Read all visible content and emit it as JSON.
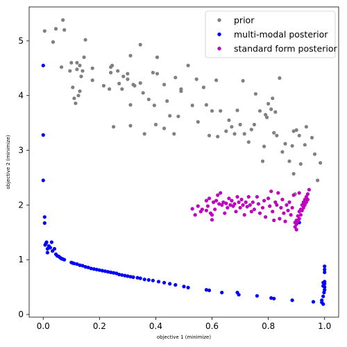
{
  "chart_data": {
    "type": "scatter",
    "title": "",
    "xlabel": "objective 1 (minimize)",
    "ylabel": "objective 2 (minimize)",
    "xlim": [
      -0.05,
      1.05
    ],
    "ylim": [
      -0.05,
      5.62
    ],
    "xticks": [
      0.0,
      0.2,
      0.4,
      0.6,
      0.8,
      1.0
    ],
    "yticks": [
      0,
      1,
      2,
      3,
      4,
      5
    ],
    "xtick_labels": [
      "0.0",
      "0.2",
      "0.4",
      "0.6",
      "0.8",
      "1.0"
    ],
    "ytick_labels": [
      "0",
      "1",
      "2",
      "3",
      "4",
      "5"
    ],
    "grid": false,
    "legend_position": "top-right",
    "series": [
      {
        "name": "prior",
        "color": "#808080",
        "points": [
          [
            0.005,
            5.18
          ],
          [
            0.035,
            4.98
          ],
          [
            0.045,
            5.22
          ],
          [
            0.07,
            5.38
          ],
          [
            0.075,
            5.2
          ],
          [
            0.065,
            4.52
          ],
          [
            0.095,
            4.45
          ],
          [
            0.1,
            4.6
          ],
          [
            0.105,
            4.15
          ],
          [
            0.11,
            3.95
          ],
          [
            0.115,
            3.86
          ],
          [
            0.12,
            4.48
          ],
          [
            0.12,
            4.6
          ],
          [
            0.13,
            4.55
          ],
          [
            0.125,
            4.0
          ],
          [
            0.13,
            4.08
          ],
          [
            0.135,
            4.35
          ],
          [
            0.14,
            4.45
          ],
          [
            0.145,
            4.7
          ],
          [
            0.15,
            5.02
          ],
          [
            0.175,
            4.5
          ],
          [
            0.175,
            4.28
          ],
          [
            0.215,
            4.18
          ],
          [
            0.235,
            4.12
          ],
          [
            0.24,
            4.52
          ],
          [
            0.24,
            4.42
          ],
          [
            0.245,
            4.55
          ],
          [
            0.25,
            3.43
          ],
          [
            0.265,
            4.45
          ],
          [
            0.27,
            4.22
          ],
          [
            0.28,
            4.12
          ],
          [
            0.285,
            4.35
          ],
          [
            0.3,
            4.3
          ],
          [
            0.3,
            4.4
          ],
          [
            0.31,
            4.73
          ],
          [
            0.31,
            3.83
          ],
          [
            0.31,
            3.45
          ],
          [
            0.32,
            4.2
          ],
          [
            0.325,
            4.18
          ],
          [
            0.345,
            4.93
          ],
          [
            0.345,
            4.23
          ],
          [
            0.355,
            4.05
          ],
          [
            0.36,
            3.3
          ],
          [
            0.375,
            3.93
          ],
          [
            0.39,
            4.42
          ],
          [
            0.395,
            3.82
          ],
          [
            0.4,
            3.47
          ],
          [
            0.405,
            4.4
          ],
          [
            0.405,
            4.7
          ],
          [
            0.43,
            4.2
          ],
          [
            0.43,
            3.4
          ],
          [
            0.44,
            3.9
          ],
          [
            0.45,
            3.63
          ],
          [
            0.465,
            3.3
          ],
          [
            0.47,
            4.33
          ],
          [
            0.48,
            3.62
          ],
          [
            0.49,
            4.08
          ],
          [
            0.49,
            4.12
          ],
          [
            0.515,
            4.55
          ],
          [
            0.53,
            3.82
          ],
          [
            0.545,
            4.3
          ],
          [
            0.55,
            3.52
          ],
          [
            0.57,
            4.15
          ],
          [
            0.58,
            3.83
          ],
          [
            0.59,
            3.27
          ],
          [
            0.6,
            3.72
          ],
          [
            0.615,
            4.28
          ],
          [
            0.62,
            3.25
          ],
          [
            0.63,
            3.72
          ],
          [
            0.65,
            3.35
          ],
          [
            0.66,
            3.55
          ],
          [
            0.67,
            3.43
          ],
          [
            0.68,
            3.3
          ],
          [
            0.69,
            3.73
          ],
          [
            0.7,
            3.47
          ],
          [
            0.71,
            4.27
          ],
          [
            0.715,
            3.3
          ],
          [
            0.73,
            3.15
          ],
          [
            0.74,
            3.38
          ],
          [
            0.75,
            3.47
          ],
          [
            0.755,
            4.03
          ],
          [
            0.77,
            3.72
          ],
          [
            0.78,
            2.8
          ],
          [
            0.785,
            3.07
          ],
          [
            0.79,
            3.65
          ],
          [
            0.795,
            3.6
          ],
          [
            0.8,
            3.85
          ],
          [
            0.81,
            3.75
          ],
          [
            0.815,
            3.95
          ],
          [
            0.82,
            3.32
          ],
          [
            0.825,
            3.7
          ],
          [
            0.83,
            3.27
          ],
          [
            0.84,
            4.32
          ],
          [
            0.85,
            2.97
          ],
          [
            0.86,
            3.12
          ],
          [
            0.875,
            2.8
          ],
          [
            0.885,
            3.08
          ],
          [
            0.89,
            2.57
          ],
          [
            0.89,
            3.35
          ],
          [
            0.895,
            2.2
          ],
          [
            0.9,
            3.37
          ],
          [
            0.91,
            3.27
          ],
          [
            0.915,
            2.75
          ],
          [
            0.93,
            3.1
          ],
          [
            0.935,
            3.43
          ],
          [
            0.955,
            3.23
          ],
          [
            0.965,
            2.93
          ],
          [
            0.975,
            2.45
          ],
          [
            0.985,
            2.77
          ]
        ]
      },
      {
        "name": "multi-modal posterior",
        "color": "#0000ff",
        "points": [
          [
            0.0,
            4.55
          ],
          [
            0.0,
            3.28
          ],
          [
            0.0,
            2.45
          ],
          [
            0.005,
            1.78
          ],
          [
            0.005,
            1.67
          ],
          [
            0.007,
            1.27
          ],
          [
            0.01,
            1.3
          ],
          [
            0.012,
            1.32
          ],
          [
            0.015,
            1.2
          ],
          [
            0.015,
            1.13
          ],
          [
            0.02,
            1.25
          ],
          [
            0.025,
            1.22
          ],
          [
            0.03,
            1.32
          ],
          [
            0.033,
            1.16
          ],
          [
            0.04,
            1.2
          ],
          [
            0.045,
            1.1
          ],
          [
            0.05,
            1.07
          ],
          [
            0.055,
            1.06
          ],
          [
            0.06,
            1.04
          ],
          [
            0.065,
            1.02
          ],
          [
            0.07,
            1.01
          ],
          [
            0.075,
            1.0
          ],
          [
            0.1,
            0.95
          ],
          [
            0.105,
            0.94
          ],
          [
            0.11,
            0.93
          ],
          [
            0.12,
            0.92
          ],
          [
            0.13,
            0.9
          ],
          [
            0.14,
            0.89
          ],
          [
            0.15,
            0.87
          ],
          [
            0.16,
            0.86
          ],
          [
            0.17,
            0.84
          ],
          [
            0.18,
            0.83
          ],
          [
            0.19,
            0.82
          ],
          [
            0.2,
            0.81
          ],
          [
            0.21,
            0.8
          ],
          [
            0.22,
            0.79
          ],
          [
            0.23,
            0.78
          ],
          [
            0.24,
            0.77
          ],
          [
            0.25,
            0.76
          ],
          [
            0.26,
            0.75
          ],
          [
            0.27,
            0.73
          ],
          [
            0.28,
            0.72
          ],
          [
            0.29,
            0.71
          ],
          [
            0.3,
            0.7
          ],
          [
            0.31,
            0.69
          ],
          [
            0.32,
            0.68
          ],
          [
            0.335,
            0.67
          ],
          [
            0.345,
            0.66
          ],
          [
            0.36,
            0.64
          ],
          [
            0.375,
            0.63
          ],
          [
            0.39,
            0.62
          ],
          [
            0.41,
            0.6
          ],
          [
            0.43,
            0.58
          ],
          [
            0.45,
            0.56
          ],
          [
            0.47,
            0.54
          ],
          [
            0.5,
            0.51
          ],
          [
            0.515,
            0.49
          ],
          [
            0.58,
            0.45
          ],
          [
            0.59,
            0.44
          ],
          [
            0.635,
            0.4
          ],
          [
            0.69,
            0.4
          ],
          [
            0.695,
            0.36
          ],
          [
            0.76,
            0.34
          ],
          [
            0.81,
            0.3
          ],
          [
            0.82,
            0.29
          ],
          [
            0.885,
            0.26
          ],
          [
            0.91,
            1.68
          ],
          [
            0.96,
            0.23
          ],
          [
            0.99,
            0.26
          ],
          [
            0.99,
            0.22
          ],
          [
            0.995,
            0.33
          ],
          [
            0.995,
            0.19
          ],
          [
            0.995,
            0.52
          ],
          [
            0.995,
            0.58
          ],
          [
            0.998,
            0.4
          ],
          [
            1.0,
            0.88
          ],
          [
            1.0,
            0.82
          ],
          [
            1.0,
            0.77
          ],
          [
            1.0,
            0.56
          ],
          [
            1.0,
            0.5
          ],
          [
            1.0,
            0.45
          ],
          [
            1.0,
            0.6
          ]
        ]
      },
      {
        "name": "standard form posterior",
        "color": "#c000c0",
        "points": [
          [
            0.53,
            1.93
          ],
          [
            0.54,
            1.82
          ],
          [
            0.55,
            1.98
          ],
          [
            0.56,
            1.88
          ],
          [
            0.565,
            1.92
          ],
          [
            0.58,
            2.08
          ],
          [
            0.585,
            1.98
          ],
          [
            0.59,
            2.12
          ],
          [
            0.595,
            1.85
          ],
          [
            0.6,
            1.73
          ],
          [
            0.605,
            2.05
          ],
          [
            0.61,
            1.92
          ],
          [
            0.615,
            2.08
          ],
          [
            0.62,
            2.18
          ],
          [
            0.625,
            2.02
          ],
          [
            0.63,
            2.22
          ],
          [
            0.635,
            2.0
          ],
          [
            0.64,
            2.05
          ],
          [
            0.645,
            1.85
          ],
          [
            0.65,
            2.03
          ],
          [
            0.655,
            1.95
          ],
          [
            0.66,
            2.12
          ],
          [
            0.665,
            2.0
          ],
          [
            0.67,
            2.08
          ],
          [
            0.675,
            1.98
          ],
          [
            0.68,
            2.02
          ],
          [
            0.685,
            1.88
          ],
          [
            0.69,
            2.15
          ],
          [
            0.695,
            2.05
          ],
          [
            0.7,
            1.95
          ],
          [
            0.705,
            2.1
          ],
          [
            0.71,
            2.0
          ],
          [
            0.715,
            1.82
          ],
          [
            0.72,
            2.05
          ],
          [
            0.725,
            1.97
          ],
          [
            0.73,
            2.15
          ],
          [
            0.735,
            2.0
          ],
          [
            0.74,
            1.88
          ],
          [
            0.745,
            2.05
          ],
          [
            0.75,
            1.92
          ],
          [
            0.76,
            2.15
          ],
          [
            0.765,
            2.02
          ],
          [
            0.77,
            1.85
          ],
          [
            0.78,
            1.95
          ],
          [
            0.785,
            2.08
          ],
          [
            0.79,
            1.78
          ],
          [
            0.8,
            2.12
          ],
          [
            0.805,
            1.98
          ],
          [
            0.81,
            2.25
          ],
          [
            0.815,
            1.88
          ],
          [
            0.82,
            1.72
          ],
          [
            0.825,
            2.05
          ],
          [
            0.83,
            2.0
          ],
          [
            0.835,
            2.22
          ],
          [
            0.84,
            1.75
          ],
          [
            0.845,
            1.95
          ],
          [
            0.85,
            2.1
          ],
          [
            0.855,
            1.85
          ],
          [
            0.86,
            1.7
          ],
          [
            0.865,
            2.0
          ],
          [
            0.87,
            1.9
          ],
          [
            0.875,
            2.05
          ],
          [
            0.88,
            1.82
          ],
          [
            0.885,
            1.95
          ],
          [
            0.89,
            2.18
          ],
          [
            0.895,
            1.6
          ],
          [
            0.9,
            1.65
          ],
          [
            0.9,
            1.72
          ],
          [
            0.905,
            1.7
          ],
          [
            0.905,
            1.8
          ],
          [
            0.91,
            1.75
          ],
          [
            0.91,
            1.88
          ],
          [
            0.915,
            1.82
          ],
          [
            0.915,
            1.92
          ],
          [
            0.92,
            1.9
          ],
          [
            0.92,
            2.0
          ],
          [
            0.925,
            1.95
          ],
          [
            0.925,
            2.05
          ],
          [
            0.93,
            2.0
          ],
          [
            0.93,
            2.1
          ],
          [
            0.935,
            2.05
          ],
          [
            0.935,
            2.15
          ],
          [
            0.94,
            2.1
          ],
          [
            0.94,
            2.2
          ],
          [
            0.945,
            2.28
          ],
          [
            0.9,
            1.55
          ],
          [
            0.895,
            1.68
          ],
          [
            0.91,
            2.22
          ],
          [
            0.6,
            1.82
          ],
          [
            0.58,
            1.9
          ]
        ]
      }
    ]
  }
}
